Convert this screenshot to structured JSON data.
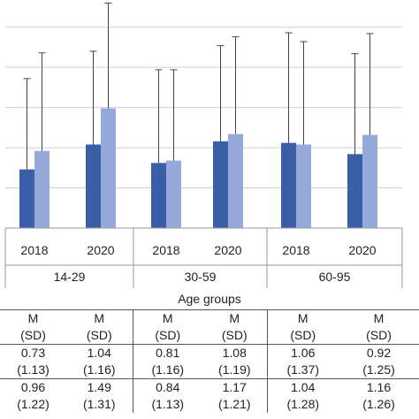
{
  "chart_data": {
    "type": "bar",
    "xlabel": "Age groups",
    "groups": [
      "14-29",
      "30-59",
      "60-95"
    ],
    "years": [
      "2018",
      "2020"
    ],
    "categories": [
      "2018",
      "2020",
      "2018",
      "2020",
      "2018",
      "2020"
    ],
    "series": [
      {
        "values": [
          0.73,
          1.04,
          0.81,
          1.08,
          1.06,
          0.92
        ],
        "sd": [
          1.13,
          1.16,
          1.16,
          1.19,
          1.37,
          1.25
        ],
        "color": "#3a5fa8"
      },
      {
        "values": [
          0.96,
          1.49,
          0.84,
          1.17,
          1.04,
          1.16
        ],
        "sd": [
          1.22,
          1.31,
          1.13,
          1.21,
          1.28,
          1.26
        ],
        "color": "#95a9db"
      }
    ],
    "ylim": [
      0,
      2.75
    ],
    "grid": true
  },
  "table": {
    "header_m": [
      "M",
      "M",
      "M",
      "M",
      "M",
      "M"
    ],
    "header_sd": [
      "(SD)",
      "(SD)",
      "(SD)",
      "(SD)",
      "(SD)",
      "(SD)"
    ],
    "row1_m": [
      "0.73",
      "1.04",
      "0.81",
      "1.08",
      "1.06",
      "0.92"
    ],
    "row1_sd": [
      "(1.13)",
      "(1.16)",
      "(1.16)",
      "(1.19)",
      "(1.37)",
      "(1.25)"
    ],
    "row2_m": [
      "0.96",
      "1.49",
      "0.84",
      "1.17",
      "1.04",
      "1.16"
    ],
    "row2_sd": [
      "(1.22)",
      "(1.31)",
      "(1.13)",
      "(1.21)",
      "(1.28)",
      "(1.26)"
    ]
  }
}
